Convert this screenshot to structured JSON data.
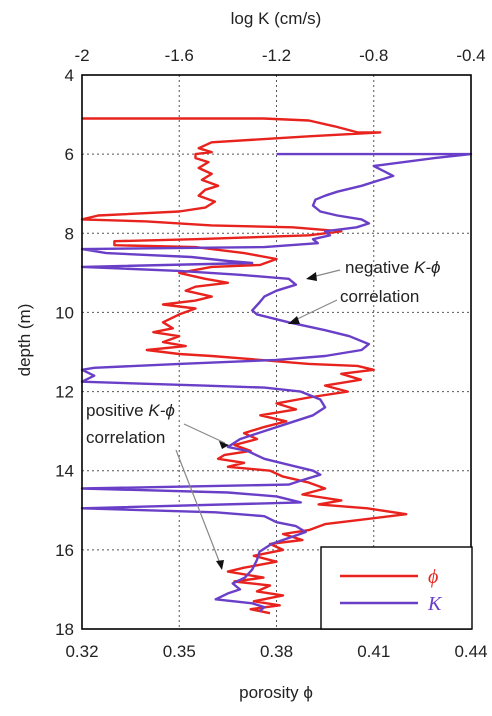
{
  "chart_data": {
    "type": "line",
    "x_top": {
      "label": "log K (cm/s)",
      "range": [
        -2,
        -0.4
      ],
      "ticks": [
        "-2",
        "-1.6",
        "-1.2",
        "-0.8",
        "-0.4"
      ]
    },
    "x_bottom": {
      "label": "porosity ϕ",
      "range": [
        0.32,
        0.44
      ],
      "ticks": [
        "0.32",
        "0.35",
        "0.38",
        "0.41",
        "0.44"
      ]
    },
    "y": {
      "label": "depth (m)",
      "range": [
        4,
        18
      ],
      "inverted": true,
      "ticks": [
        "4",
        "6",
        "8",
        "10",
        "12",
        "14",
        "16",
        "18"
      ]
    },
    "grid": true,
    "legend_position": "bottom-right",
    "series": [
      {
        "name": "ϕ",
        "axis": "bottom",
        "color": "#e8231e",
        "points": [
          [
            0.32,
            5.1
          ],
          [
            0.376,
            5.1
          ],
          [
            0.39,
            5.15
          ],
          [
            0.398,
            5.3
          ],
          [
            0.405,
            5.45
          ],
          [
            0.412,
            5.45
          ],
          [
            0.39,
            5.55
          ],
          [
            0.36,
            5.7
          ],
          [
            0.356,
            5.85
          ],
          [
            0.36,
            5.95
          ],
          [
            0.355,
            6.0
          ],
          [
            0.355,
            6.1
          ],
          [
            0.359,
            6.2
          ],
          [
            0.356,
            6.35
          ],
          [
            0.36,
            6.5
          ],
          [
            0.357,
            6.65
          ],
          [
            0.362,
            6.8
          ],
          [
            0.358,
            6.9
          ],
          [
            0.356,
            7.05
          ],
          [
            0.361,
            7.2
          ],
          [
            0.358,
            7.35
          ],
          [
            0.35,
            7.45
          ],
          [
            0.325,
            7.55
          ],
          [
            0.32,
            7.65
          ],
          [
            0.34,
            7.7
          ],
          [
            0.36,
            7.8
          ],
          [
            0.385,
            7.85
          ],
          [
            0.4,
            7.95
          ],
          [
            0.39,
            8.05
          ],
          [
            0.355,
            8.15
          ],
          [
            0.33,
            8.2
          ],
          [
            0.33,
            8.3
          ],
          [
            0.355,
            8.35
          ],
          [
            0.37,
            8.5
          ],
          [
            0.38,
            8.65
          ],
          [
            0.375,
            8.8
          ],
          [
            0.36,
            8.85
          ],
          [
            0.35,
            9.0
          ],
          [
            0.358,
            9.15
          ],
          [
            0.365,
            9.25
          ],
          [
            0.355,
            9.35
          ],
          [
            0.352,
            9.45
          ],
          [
            0.36,
            9.6
          ],
          [
            0.355,
            9.7
          ],
          [
            0.345,
            9.8
          ],
          [
            0.355,
            9.9
          ],
          [
            0.35,
            10.05
          ],
          [
            0.345,
            10.25
          ],
          [
            0.348,
            10.4
          ],
          [
            0.342,
            10.5
          ],
          [
            0.35,
            10.6
          ],
          [
            0.345,
            10.75
          ],
          [
            0.352,
            10.85
          ],
          [
            0.34,
            10.95
          ],
          [
            0.35,
            11.05
          ],
          [
            0.36,
            11.1
          ],
          [
            0.375,
            11.2
          ],
          [
            0.39,
            11.3
          ],
          [
            0.405,
            11.35
          ],
          [
            0.41,
            11.45
          ],
          [
            0.4,
            11.55
          ],
          [
            0.406,
            11.7
          ],
          [
            0.395,
            11.85
          ],
          [
            0.402,
            12.0
          ],
          [
            0.39,
            12.15
          ],
          [
            0.38,
            12.3
          ],
          [
            0.386,
            12.45
          ],
          [
            0.375,
            12.6
          ],
          [
            0.383,
            12.75
          ],
          [
            0.376,
            12.9
          ],
          [
            0.37,
            13.05
          ],
          [
            0.374,
            13.2
          ],
          [
            0.367,
            13.35
          ],
          [
            0.372,
            13.5
          ],
          [
            0.364,
            13.6
          ],
          [
            0.362,
            13.7
          ],
          [
            0.37,
            13.8
          ],
          [
            0.365,
            13.9
          ],
          [
            0.378,
            14.0
          ],
          [
            0.382,
            14.15
          ],
          [
            0.39,
            14.3
          ],
          [
            0.395,
            14.45
          ],
          [
            0.388,
            14.6
          ],
          [
            0.4,
            14.75
          ],
          [
            0.393,
            14.85
          ],
          [
            0.408,
            14.95
          ],
          [
            0.42,
            15.1
          ],
          [
            0.405,
            15.25
          ],
          [
            0.395,
            15.35
          ],
          [
            0.39,
            15.5
          ],
          [
            0.382,
            15.6
          ],
          [
            0.388,
            15.75
          ],
          [
            0.378,
            15.85
          ],
          [
            0.382,
            16.0
          ],
          [
            0.373,
            16.15
          ],
          [
            0.38,
            16.3
          ],
          [
            0.37,
            16.45
          ],
          [
            0.365,
            16.55
          ],
          [
            0.376,
            16.7
          ],
          [
            0.367,
            16.8
          ],
          [
            0.378,
            16.9
          ],
          [
            0.374,
            17.05
          ],
          [
            0.382,
            17.15
          ],
          [
            0.373,
            17.3
          ],
          [
            0.381,
            17.4
          ],
          [
            0.372,
            17.5
          ],
          [
            0.378,
            17.6
          ]
        ]
      },
      {
        "name": "K",
        "axis": "top",
        "color": "#6a3fc8",
        "points": [
          [
            -1.2,
            6.0
          ],
          [
            -0.4,
            6.0
          ],
          [
            -0.55,
            6.1
          ],
          [
            -0.8,
            6.3
          ],
          [
            -0.72,
            6.55
          ],
          [
            -0.85,
            6.8
          ],
          [
            -0.95,
            6.95
          ],
          [
            -1.0,
            7.05
          ],
          [
            -1.04,
            7.15
          ],
          [
            -1.05,
            7.3
          ],
          [
            -1.02,
            7.45
          ],
          [
            -0.95,
            7.55
          ],
          [
            -0.85,
            7.65
          ],
          [
            -0.82,
            7.75
          ],
          [
            -0.87,
            7.85
          ],
          [
            -1.0,
            7.95
          ],
          [
            -0.98,
            8.05
          ],
          [
            -1.05,
            8.15
          ],
          [
            -1.03,
            8.25
          ],
          [
            -1.25,
            8.35
          ],
          [
            -2.0,
            8.4
          ],
          [
            -1.9,
            8.5
          ],
          [
            -1.55,
            8.6
          ],
          [
            -1.4,
            8.7
          ],
          [
            -1.3,
            8.75
          ],
          [
            -2.0,
            8.85
          ],
          [
            -1.6,
            8.95
          ],
          [
            -1.35,
            9.05
          ],
          [
            -1.15,
            9.15
          ],
          [
            -1.12,
            9.3
          ],
          [
            -1.2,
            9.45
          ],
          [
            -1.25,
            9.6
          ],
          [
            -1.27,
            9.75
          ],
          [
            -1.3,
            9.95
          ],
          [
            -1.28,
            10.05
          ],
          [
            -1.15,
            10.25
          ],
          [
            -1.0,
            10.45
          ],
          [
            -0.9,
            10.6
          ],
          [
            -0.82,
            10.8
          ],
          [
            -0.85,
            10.95
          ],
          [
            -1.0,
            11.1
          ],
          [
            -1.2,
            11.2
          ],
          [
            -1.6,
            11.3
          ],
          [
            -1.95,
            11.4
          ],
          [
            -2.0,
            11.45
          ],
          [
            -1.95,
            11.6
          ],
          [
            -2.0,
            11.75
          ],
          [
            -1.5,
            11.85
          ],
          [
            -1.25,
            11.9
          ],
          [
            -1.1,
            12.0
          ],
          [
            -1.02,
            12.2
          ],
          [
            -1.0,
            12.4
          ],
          [
            -1.05,
            12.6
          ],
          [
            -1.15,
            12.8
          ],
          [
            -1.25,
            13.0
          ],
          [
            -1.35,
            13.2
          ],
          [
            -1.4,
            13.4
          ],
          [
            -1.32,
            13.5
          ],
          [
            -1.25,
            13.7
          ],
          [
            -1.15,
            13.85
          ],
          [
            -1.05,
            14.0
          ],
          [
            -1.02,
            14.1
          ],
          [
            -1.1,
            14.25
          ],
          [
            -1.15,
            14.35
          ],
          [
            -2.0,
            14.45
          ],
          [
            -1.4,
            14.55
          ],
          [
            -1.2,
            14.65
          ],
          [
            -1.1,
            14.8
          ],
          [
            -2.0,
            14.95
          ],
          [
            -1.45,
            15.05
          ],
          [
            -1.25,
            15.15
          ],
          [
            -1.2,
            15.3
          ],
          [
            -1.12,
            15.4
          ],
          [
            -1.08,
            15.55
          ],
          [
            -1.15,
            15.7
          ],
          [
            -1.22,
            15.85
          ],
          [
            -1.27,
            16.05
          ],
          [
            -1.28,
            16.25
          ],
          [
            -1.3,
            16.5
          ],
          [
            -1.33,
            16.7
          ],
          [
            -1.38,
            16.85
          ],
          [
            -1.35,
            17.0
          ],
          [
            -1.4,
            17.1
          ],
          [
            -1.45,
            17.25
          ],
          [
            -1.3,
            17.35
          ],
          [
            -1.25,
            17.45
          ],
          [
            -1.27,
            17.55
          ]
        ]
      }
    ],
    "annotations": {
      "negative": {
        "line1": "negative ",
        "italic": "K-ϕ",
        "line2": "correlation"
      },
      "positive": {
        "line1": "positive ",
        "italic": "K-ϕ",
        "line2": "correlation"
      }
    },
    "legend": {
      "phi_label": "ϕ",
      "k_label": "K"
    }
  }
}
